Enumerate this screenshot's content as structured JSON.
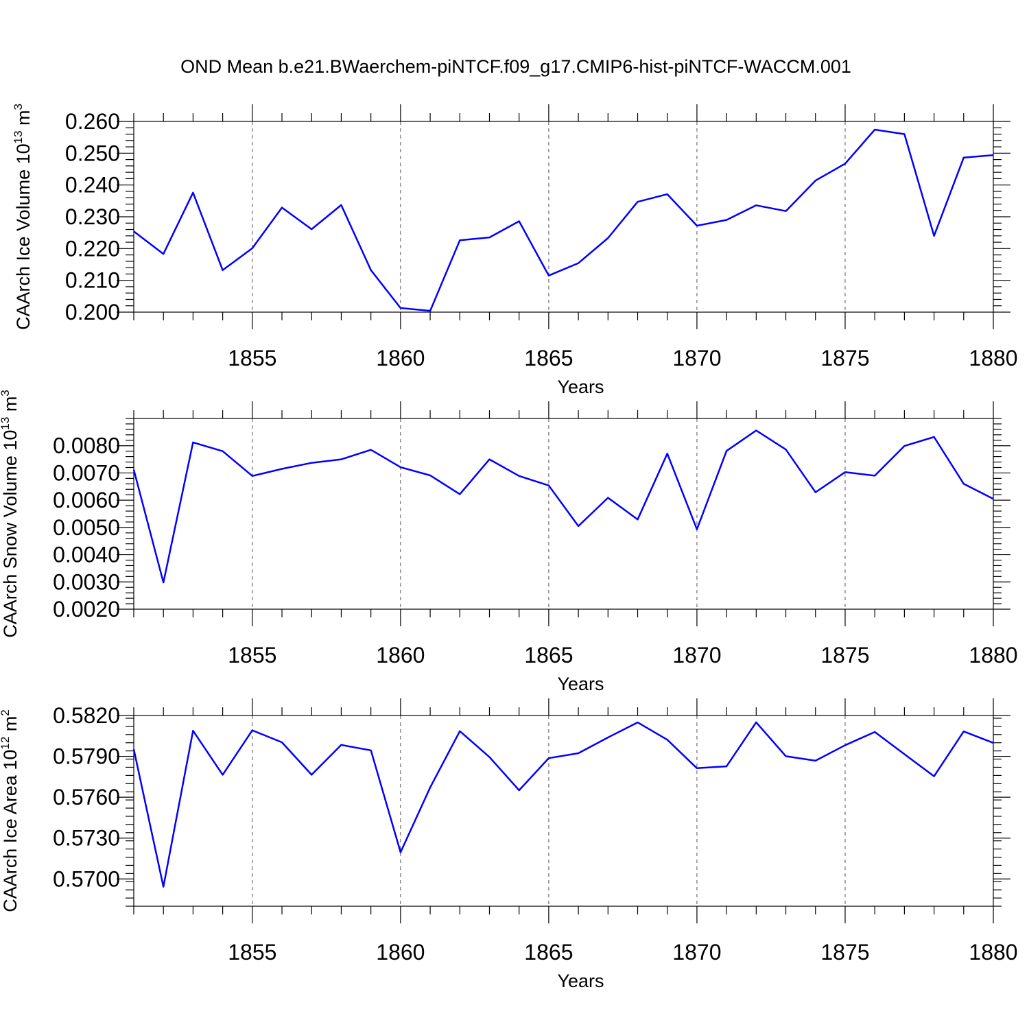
{
  "title": "OND Mean b.e21.BWaerchem-piNTCF.f09_g17.CMIP6-hist-piNTCF-WACCM.001",
  "line_color": "#0000ff",
  "chart_data": [
    {
      "type": "line",
      "ylabel": "CAArch Ice Volume 10",
      "ylabel_exp": "13",
      "ylabel_unit": "m",
      "ylabel_unit_exp": "3",
      "xlabel": "Years",
      "xlim": [
        1851,
        1880
      ],
      "ylim": [
        0.2,
        0.26
      ],
      "yticks": [
        0.2,
        0.21,
        0.22,
        0.23,
        0.24,
        0.25,
        0.26
      ],
      "ytick_labels": [
        "0.200",
        "0.210",
        "0.220",
        "0.230",
        "0.240",
        "0.250",
        "0.260"
      ],
      "yminor": 0.002,
      "xticks": [
        1855,
        1860,
        1865,
        1870,
        1875,
        1880
      ],
      "xtick_labels": [
        "1855",
        "1860",
        "1865",
        "1870",
        "1875",
        "1880"
      ],
      "x": [
        1851,
        1852,
        1853,
        1854,
        1855,
        1856,
        1857,
        1858,
        1859,
        1860,
        1861,
        1862,
        1863,
        1864,
        1865,
        1866,
        1867,
        1868,
        1869,
        1870,
        1871,
        1872,
        1873,
        1874,
        1875,
        1876,
        1877,
        1878,
        1879,
        1880
      ],
      "y": [
        0.2254,
        0.2183,
        0.2376,
        0.2132,
        0.2201,
        0.2329,
        0.2261,
        0.2337,
        0.2132,
        0.2013,
        0.2004,
        0.2226,
        0.2235,
        0.2286,
        0.2115,
        0.2154,
        0.2233,
        0.2347,
        0.2371,
        0.2272,
        0.229,
        0.2336,
        0.2318,
        0.2414,
        0.2467,
        0.2574,
        0.256,
        0.224,
        0.2486,
        0.2494
      ]
    },
    {
      "type": "line",
      "ylabel": "CAArch Snow Volume 10",
      "ylabel_exp": "13",
      "ylabel_unit": "m",
      "ylabel_unit_exp": "3",
      "xlabel": "Years",
      "xlim": [
        1851,
        1880
      ],
      "ylim": [
        0.002,
        0.009
      ],
      "yticks": [
        0.002,
        0.003,
        0.004,
        0.005,
        0.006,
        0.007,
        0.008
      ],
      "ytick_labels": [
        "0.0020",
        "0.0030",
        "0.0040",
        "0.0050",
        "0.0060",
        "0.0070",
        "0.0080"
      ],
      "yminor": 0.0002,
      "xticks": [
        1855,
        1860,
        1865,
        1870,
        1875,
        1880
      ],
      "xtick_labels": [
        "1855",
        "1860",
        "1865",
        "1870",
        "1875",
        "1880"
      ],
      "x": [
        1851,
        1852,
        1853,
        1854,
        1855,
        1856,
        1857,
        1858,
        1859,
        1860,
        1861,
        1862,
        1863,
        1864,
        1865,
        1866,
        1867,
        1868,
        1869,
        1870,
        1871,
        1872,
        1873,
        1874,
        1875,
        1876,
        1877,
        1878,
        1879,
        1880
      ],
      "y": [
        0.00712,
        0.00298,
        0.00812,
        0.0078,
        0.00689,
        0.00715,
        0.00737,
        0.0075,
        0.00785,
        0.00721,
        0.00691,
        0.00622,
        0.0075,
        0.00689,
        0.00654,
        0.00505,
        0.00609,
        0.00529,
        0.00771,
        0.00493,
        0.00781,
        0.00856,
        0.00786,
        0.00629,
        0.00703,
        0.0069,
        0.00799,
        0.00832,
        0.0066,
        0.00605
      ]
    },
    {
      "type": "line",
      "ylabel": "CAArch Ice Area 10",
      "ylabel_exp": "12",
      "ylabel_unit": "m",
      "ylabel_unit_exp": "2",
      "xlabel": "Years",
      "xlim": [
        1851,
        1880
      ],
      "ylim": [
        0.568,
        0.582
      ],
      "yticks": [
        0.57,
        0.573,
        0.576,
        0.579,
        0.582
      ],
      "ytick_labels": [
        "0.5700",
        "0.5730",
        "0.5760",
        "0.5790",
        "0.5820"
      ],
      "yminor": 0.0006,
      "xticks": [
        1855,
        1860,
        1865,
        1870,
        1875,
        1880
      ],
      "xtick_labels": [
        "1855",
        "1860",
        "1865",
        "1870",
        "1875",
        "1880"
      ],
      "x": [
        1851,
        1852,
        1853,
        1854,
        1855,
        1856,
        1857,
        1858,
        1859,
        1860,
        1861,
        1862,
        1863,
        1864,
        1865,
        1866,
        1867,
        1868,
        1869,
        1870,
        1871,
        1872,
        1873,
        1874,
        1875,
        1876,
        1877,
        1878,
        1879,
        1880
      ],
      "y": [
        0.57952,
        0.56943,
        0.58088,
        0.57765,
        0.58091,
        0.58003,
        0.57765,
        0.57984,
        0.57944,
        0.57196,
        0.57672,
        0.58085,
        0.57895,
        0.57651,
        0.57887,
        0.57923,
        0.58039,
        0.58149,
        0.58022,
        0.57813,
        0.57827,
        0.5815,
        0.57901,
        0.57868,
        0.57982,
        0.58079,
        0.57916,
        0.57754,
        0.58083,
        0.57999
      ]
    }
  ]
}
